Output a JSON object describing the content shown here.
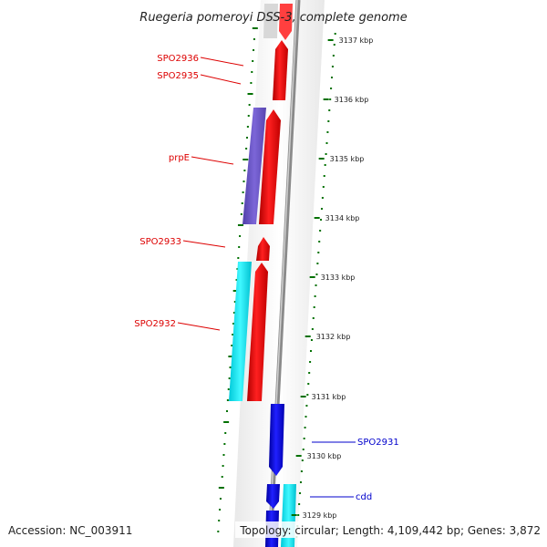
{
  "title": "Ruegeria pomeroyi DSS-3, complete genome",
  "footer": {
    "accession": "Accession: NC_003911",
    "topology": "Topology: circular; Length: 4,109,442 bp; Genes: 3,872"
  },
  "colors": {
    "forward_gene": "#ff0000",
    "reverse_gene": "#0000ee",
    "cds_purple": "#7058c8",
    "cds_cyan": "#00e8f0",
    "tick_green": "#007000",
    "backbone": "#888888"
  },
  "scale_ticks": [
    "3137 kbp",
    "3136 kbp",
    "3135 kbp",
    "3134 kbp",
    "3133 kbp",
    "3132 kbp",
    "3131 kbp",
    "3130 kbp",
    "3129 kbp"
  ],
  "gene_labels": [
    {
      "text": "SPO2936",
      "strand": "forward"
    },
    {
      "text": "SPO2935",
      "strand": "forward"
    },
    {
      "text": "prpE",
      "strand": "forward"
    },
    {
      "text": "SPO2933",
      "strand": "forward"
    },
    {
      "text": "SPO2932",
      "strand": "forward"
    },
    {
      "text": "SPO2931",
      "strand": "reverse"
    },
    {
      "text": "cdd",
      "strand": "reverse"
    }
  ]
}
